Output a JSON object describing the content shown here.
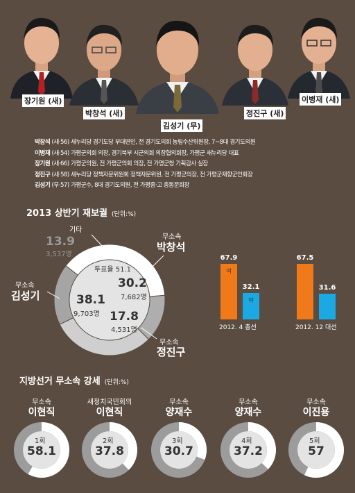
{
  "candidates": [
    {
      "name": "장기원 (새)"
    },
    {
      "name": "박창석 (새)"
    },
    {
      "name": "김성기 (무)"
    },
    {
      "name": "정진구 (새)"
    },
    {
      "name": "이병재 (새)"
    }
  ],
  "bios": [
    {
      "name": "박창석",
      "detail": "(새·56) 새누리당 경기도당 부대변인, 전 경기도의회 농림수산위원장, 7~8대 경기도의원"
    },
    {
      "name": "이병재",
      "detail": "(새·54) 가평군의회 의장, 경기북부 시군의회 의장협의회장, 가평군 새누리당 대표"
    },
    {
      "name": "장기원",
      "detail": "(새·66) 가평군의원, 전 가평군의회 의장, 전 가평군청 기획감사 실장"
    },
    {
      "name": "정진구",
      "detail": "(새·58) 새누리당 정책자문위원회 정책자문위원, 전 가평군의장, 전 가평군재향군인회장"
    },
    {
      "name": "김성기",
      "detail": "(무·57) 가평군수, 8대 경기도의원, 전 가평중·고 총동문회장"
    }
  ],
  "section1": {
    "title": "2013 상반기 재보궐",
    "unit": "(단위:%)"
  },
  "section2": {
    "title": "지방선거 무소속 강세",
    "unit": "(단위:%)"
  },
  "chart_data": [
    {
      "type": "pie",
      "title": "2013 상반기 재보궐",
      "unit": "(단위:%)",
      "center_label": "투표율 51.1",
      "slices": [
        {
          "party": "무소속",
          "name": "김성기",
          "value": 38.1,
          "votes": "9,703명",
          "color": "#ffffff"
        },
        {
          "party": "",
          "name": "기타",
          "value": 13.9,
          "votes": "3,537명",
          "color": "#aeaeae"
        },
        {
          "party": "무소속",
          "name": "박창석",
          "value": 30.2,
          "votes": "7,682명",
          "color": "#cfcfcf"
        },
        {
          "party": "무소속",
          "name": "정진구",
          "value": 17.8,
          "votes": "4,531명",
          "color": "#a5a5a5"
        }
      ],
      "colors": {
        "inner": "#e4e4e4",
        "text": "#333333",
        "muted": "#9a9a9a"
      }
    },
    {
      "type": "bar",
      "groups": [
        {
          "category": "2012. 4 총선",
          "series": [
            {
              "name": "여",
              "value": 67.9,
              "color": "#f07a1a"
            },
            {
              "name": "야",
              "value": 32.1,
              "color": "#1aa9e3"
            }
          ]
        },
        {
          "category": "2012. 12 대선",
          "series": [
            {
              "name": "",
              "value": 67.5,
              "color": "#f07a1a"
            },
            {
              "name": "",
              "value": 31.6,
              "color": "#1aa9e3"
            }
          ]
        }
      ]
    },
    {
      "type": "pie",
      "title": "지방선거 무소속 강세",
      "unit": "(단위:%)",
      "items": [
        {
          "party": "무소속",
          "name": "이현직",
          "round": "1회",
          "value": 58.1
        },
        {
          "party": "새정치국민회의",
          "name": "이현직",
          "round": "2회",
          "value": 37.8
        },
        {
          "party": "무소속",
          "name": "양재수",
          "round": "3회",
          "value": 30.7
        },
        {
          "party": "무소속",
          "name": "양재수",
          "round": "4회",
          "value": 37.2
        },
        {
          "party": "무소속",
          "name": "이진용",
          "round": "5회",
          "value": 57
        }
      ],
      "colors": {
        "ring": "#ffffff",
        "rest": "#9c9c9c",
        "inner": "#e4e4e4"
      }
    }
  ]
}
